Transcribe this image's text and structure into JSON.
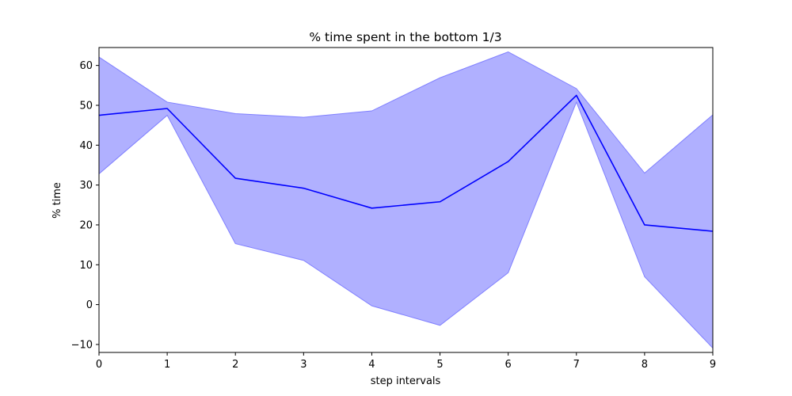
{
  "chart_data": {
    "type": "area",
    "title": "% time spent in the bottom 1/3",
    "xlabel": "step intervals",
    "ylabel": "% time",
    "x": [
      0,
      1,
      2,
      3,
      4,
      5,
      6,
      7,
      8,
      9
    ],
    "xlim": [
      0,
      9
    ],
    "ylim": [
      -12,
      64.5
    ],
    "xticks": [
      0,
      1,
      2,
      3,
      4,
      5,
      6,
      7,
      8,
      9
    ],
    "yticks": [
      -10,
      0,
      10,
      20,
      30,
      40,
      50,
      60
    ],
    "grid": false,
    "series": [
      {
        "kind": "line",
        "values": [
          47.5,
          49.2,
          31.7,
          29.2,
          24.2,
          25.8,
          35.9,
          52.5,
          20.0,
          18.4
        ]
      },
      {
        "kind": "band",
        "upper": [
          62.1,
          50.8,
          47.9,
          47.0,
          48.6,
          56.9,
          63.4,
          54.2,
          33.0,
          47.6
        ],
        "lower": [
          32.8,
          47.5,
          15.3,
          11.1,
          -0.3,
          -5.2,
          8.0,
          50.8,
          7.0,
          -10.9
        ]
      }
    ],
    "colors": {
      "line": "#0000ff",
      "band_fill": "#b0b0ff",
      "band_edge": "#8080ff"
    }
  }
}
